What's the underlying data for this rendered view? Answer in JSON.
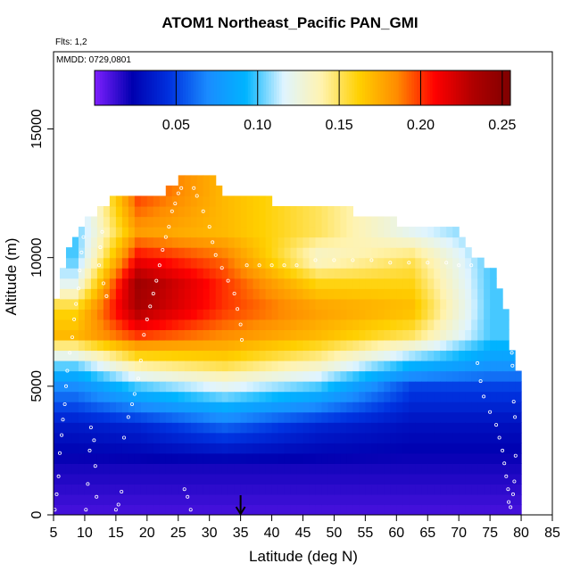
{
  "chart_data": {
    "type": "heatmap",
    "title": "ATOM1 Northeast_Pacific PAN_GMI",
    "annotations": [
      "Flts: 1,2",
      "MMDD: 0729,0801"
    ],
    "xlabel": "Latitude (deg N)",
    "ylabel": "Altitude (m)",
    "xlim": [
      5,
      85
    ],
    "ylim": [
      0,
      18000
    ],
    "xticks": [
      "5",
      "10",
      "15",
      "20",
      "25",
      "30",
      "35",
      "40",
      "45",
      "50",
      "55",
      "60",
      "65",
      "70",
      "75",
      "80",
      "85"
    ],
    "yticks": [
      "0",
      "5000",
      "10000",
      "15000"
    ],
    "colorbar": {
      "range": [
        0,
        0.255
      ],
      "ticks": [
        "0.05",
        "0.10",
        "0.15",
        "0.20",
        "0.25"
      ],
      "colors": [
        "#7f1fff",
        "#0000b0",
        "#0033e0",
        "#1a8cff",
        "#00b4ff",
        "#dff4ff",
        "#fff3b0",
        "#ffd000",
        "#ff8c00",
        "#ff0000",
        "#b00000",
        "#7f0000"
      ]
    },
    "marker": {
      "label": "35",
      "x": 35
    },
    "colors": {
      "background": "#ffffff",
      "axis": "#000000",
      "markers": "#ffffff"
    },
    "profile": [
      {
        "lat": [
          5,
          12
        ],
        "levels": [
          [
            0,
            0.01
          ],
          [
            2000,
            0.02
          ],
          [
            3500,
            0.035
          ],
          [
            5000,
            0.07
          ],
          [
            6000,
            0.11
          ],
          [
            7000,
            0.17
          ],
          [
            8000,
            0.16
          ],
          [
            9000,
            0.12
          ],
          [
            10000,
            0.1
          ],
          [
            11000,
            0.1
          ]
        ]
      },
      {
        "lat": [
          12,
          25
        ],
        "levels": [
          [
            0,
            0.01
          ],
          [
            2000,
            0.02
          ],
          [
            3500,
            0.04
          ],
          [
            5000,
            0.1
          ],
          [
            6000,
            0.15
          ],
          [
            7000,
            0.2
          ],
          [
            8000,
            0.235
          ],
          [
            9000,
            0.24
          ],
          [
            10000,
            0.21
          ],
          [
            11000,
            0.18
          ],
          [
            12500,
            0.2
          ]
        ]
      },
      {
        "lat": [
          25,
          40
        ],
        "levels": [
          [
            0,
            0.01
          ],
          [
            2000,
            0.02
          ],
          [
            3500,
            0.06
          ],
          [
            5000,
            0.12
          ],
          [
            6000,
            0.16
          ],
          [
            7000,
            0.185
          ],
          [
            8000,
            0.2
          ],
          [
            9000,
            0.2
          ],
          [
            10000,
            0.19
          ],
          [
            11000,
            0.17
          ],
          [
            12000,
            0.17
          ]
        ]
      },
      {
        "lat": [
          40,
          55
        ],
        "levels": [
          [
            0,
            0.01
          ],
          [
            2000,
            0.02
          ],
          [
            3500,
            0.04
          ],
          [
            5000,
            0.1
          ],
          [
            6000,
            0.14
          ],
          [
            7000,
            0.17
          ],
          [
            8000,
            0.18
          ],
          [
            9000,
            0.16
          ],
          [
            10000,
            0.13
          ],
          [
            11000,
            0.15
          ],
          [
            12000,
            0.15
          ]
        ]
      },
      {
        "lat": [
          55,
          70
        ],
        "levels": [
          [
            0,
            0.01
          ],
          [
            2000,
            0.02
          ],
          [
            3500,
            0.03
          ],
          [
            5000,
            0.05
          ],
          [
            6000,
            0.1
          ],
          [
            7000,
            0.15
          ],
          [
            8000,
            0.17
          ],
          [
            9000,
            0.16
          ],
          [
            10000,
            0.15
          ],
          [
            11000,
            0.12
          ]
        ]
      },
      {
        "lat": [
          70,
          80
        ],
        "levels": [
          [
            0,
            0.01
          ],
          [
            2000,
            0.02
          ],
          [
            3500,
            0.03
          ],
          [
            5000,
            0.05
          ],
          [
            6000,
            0.08
          ],
          [
            7000,
            0.1
          ],
          [
            8000,
            0.1
          ],
          [
            9000,
            0.1
          ],
          [
            10000,
            0.1
          ]
        ]
      }
    ],
    "envelope": [
      [
        5,
        0,
        6900
      ],
      [
        6,
        0,
        9500
      ],
      [
        7,
        0,
        9500
      ],
      [
        8,
        0,
        10600
      ],
      [
        10,
        0,
        11200
      ],
      [
        12,
        0,
        11600
      ],
      [
        14,
        0,
        12000
      ],
      [
        20,
        0,
        12200
      ],
      [
        24,
        0,
        12500
      ],
      [
        25,
        0,
        12900
      ],
      [
        31,
        0,
        12900
      ],
      [
        32,
        0,
        12100
      ],
      [
        40,
        0,
        12000
      ],
      [
        45,
        0,
        11900
      ],
      [
        50,
        0,
        11900
      ],
      [
        55,
        0,
        11400
      ],
      [
        62,
        0,
        11100
      ],
      [
        70,
        0,
        10800
      ],
      [
        72,
        0,
        10100
      ],
      [
        76,
        0,
        9200
      ],
      [
        77,
        0,
        8400
      ],
      [
        78,
        0,
        6900
      ],
      [
        79,
        0,
        5500
      ]
    ],
    "sample_points": [
      [
        5.2,
        200
      ],
      [
        5.5,
        800
      ],
      [
        5.8,
        1500
      ],
      [
        6,
        2400
      ],
      [
        6.3,
        3100
      ],
      [
        6.5,
        3700
      ],
      [
        6.8,
        4300
      ],
      [
        7,
        5000
      ],
      [
        7.2,
        5600
      ],
      [
        7.6,
        6300
      ],
      [
        8,
        6900
      ],
      [
        8.3,
        7600
      ],
      [
        8.6,
        8200
      ],
      [
        9,
        8800
      ],
      [
        9.2,
        9500
      ],
      [
        9.5,
        10200
      ],
      [
        9.8,
        10800
      ],
      [
        10.2,
        200
      ],
      [
        10.5,
        1200
      ],
      [
        10.8,
        2500
      ],
      [
        11,
        3400
      ],
      [
        11.5,
        2900
      ],
      [
        11.7,
        1900
      ],
      [
        11.9,
        700
      ],
      [
        12.3,
        9700
      ],
      [
        12.5,
        10400
      ],
      [
        12.8,
        11000
      ],
      [
        13,
        9000
      ],
      [
        13.5,
        8500
      ],
      [
        15,
        200
      ],
      [
        15.4,
        400
      ],
      [
        15.9,
        900
      ],
      [
        16.3,
        3000
      ],
      [
        17,
        3800
      ],
      [
        17.6,
        4300
      ],
      [
        18,
        4700
      ],
      [
        18.6,
        5300
      ],
      [
        19,
        6000
      ],
      [
        19.5,
        7000
      ],
      [
        20,
        7600
      ],
      [
        20.5,
        8100
      ],
      [
        21,
        8600
      ],
      [
        21.5,
        9100
      ],
      [
        22,
        9700
      ],
      [
        22.5,
        10300
      ],
      [
        23,
        10800
      ],
      [
        23.5,
        11200
      ],
      [
        24,
        11800
      ],
      [
        24.5,
        12100
      ],
      [
        25,
        12500
      ],
      [
        25.5,
        12700
      ],
      [
        26,
        1000
      ],
      [
        26.5,
        700
      ],
      [
        27,
        200
      ],
      [
        27.5,
        12700
      ],
      [
        28,
        12400
      ],
      [
        29,
        11800
      ],
      [
        30,
        11200
      ],
      [
        30.5,
        10600
      ],
      [
        31,
        10100
      ],
      [
        32,
        9600
      ],
      [
        33,
        9100
      ],
      [
        34,
        8600
      ],
      [
        34.5,
        8000
      ],
      [
        35,
        7400
      ],
      [
        35.2,
        6800
      ],
      [
        36,
        9700
      ],
      [
        38,
        9700
      ],
      [
        40,
        9700
      ],
      [
        42,
        9700
      ],
      [
        44,
        9700
      ],
      [
        47,
        9900
      ],
      [
        50,
        9900
      ],
      [
        53,
        9900
      ],
      [
        56,
        9900
      ],
      [
        59,
        9800
      ],
      [
        62,
        9800
      ],
      [
        65,
        9800
      ],
      [
        68,
        9800
      ],
      [
        70,
        9700
      ],
      [
        72,
        9700
      ],
      [
        73,
        5900
      ],
      [
        73.5,
        5200
      ],
      [
        74,
        4600
      ],
      [
        75,
        4000
      ],
      [
        76,
        3500
      ],
      [
        76.5,
        3000
      ],
      [
        77,
        2500
      ],
      [
        77.3,
        2000
      ],
      [
        77.6,
        1500
      ],
      [
        77.9,
        1000
      ],
      [
        78,
        500
      ],
      [
        78.3,
        300
      ],
      [
        78.5,
        6300
      ],
      [
        78.6,
        5800
      ],
      [
        78.8,
        4400
      ],
      [
        79,
        3800
      ],
      [
        79.1,
        2300
      ],
      [
        78.9,
        1300
      ],
      [
        78.7,
        800
      ]
    ]
  }
}
